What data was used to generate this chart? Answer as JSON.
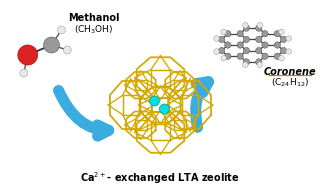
{
  "bg_color": "#ffffff",
  "title_color": "#000000",
  "title_fontsize": 7.0,
  "methanol_label": "Methanol",
  "methanol_formula": "(CH$_3$OH)",
  "coronene_label": "Coronene",
  "coronene_formula": "(C$_{24}$H$_{12}$)",
  "label_fontsize": 7.0,
  "formula_fontsize": 6.5,
  "arrow_color": "#3aace0",
  "zeolite_color": "#d4a800",
  "zeolite_color2": "#b08800",
  "ca_color": "#00e0e0",
  "methanol_O_color": "#dd2222",
  "methanol_C_color": "#999999",
  "methanol_H_color": "#e8e8e8",
  "coronene_C_color": "#999999",
  "coronene_H_color": "#e8e8e8",
  "coronene_bond_color": "#444444",
  "underline_color": "#cc7700",
  "figw": 3.23,
  "figh": 1.89,
  "dpi": 100
}
